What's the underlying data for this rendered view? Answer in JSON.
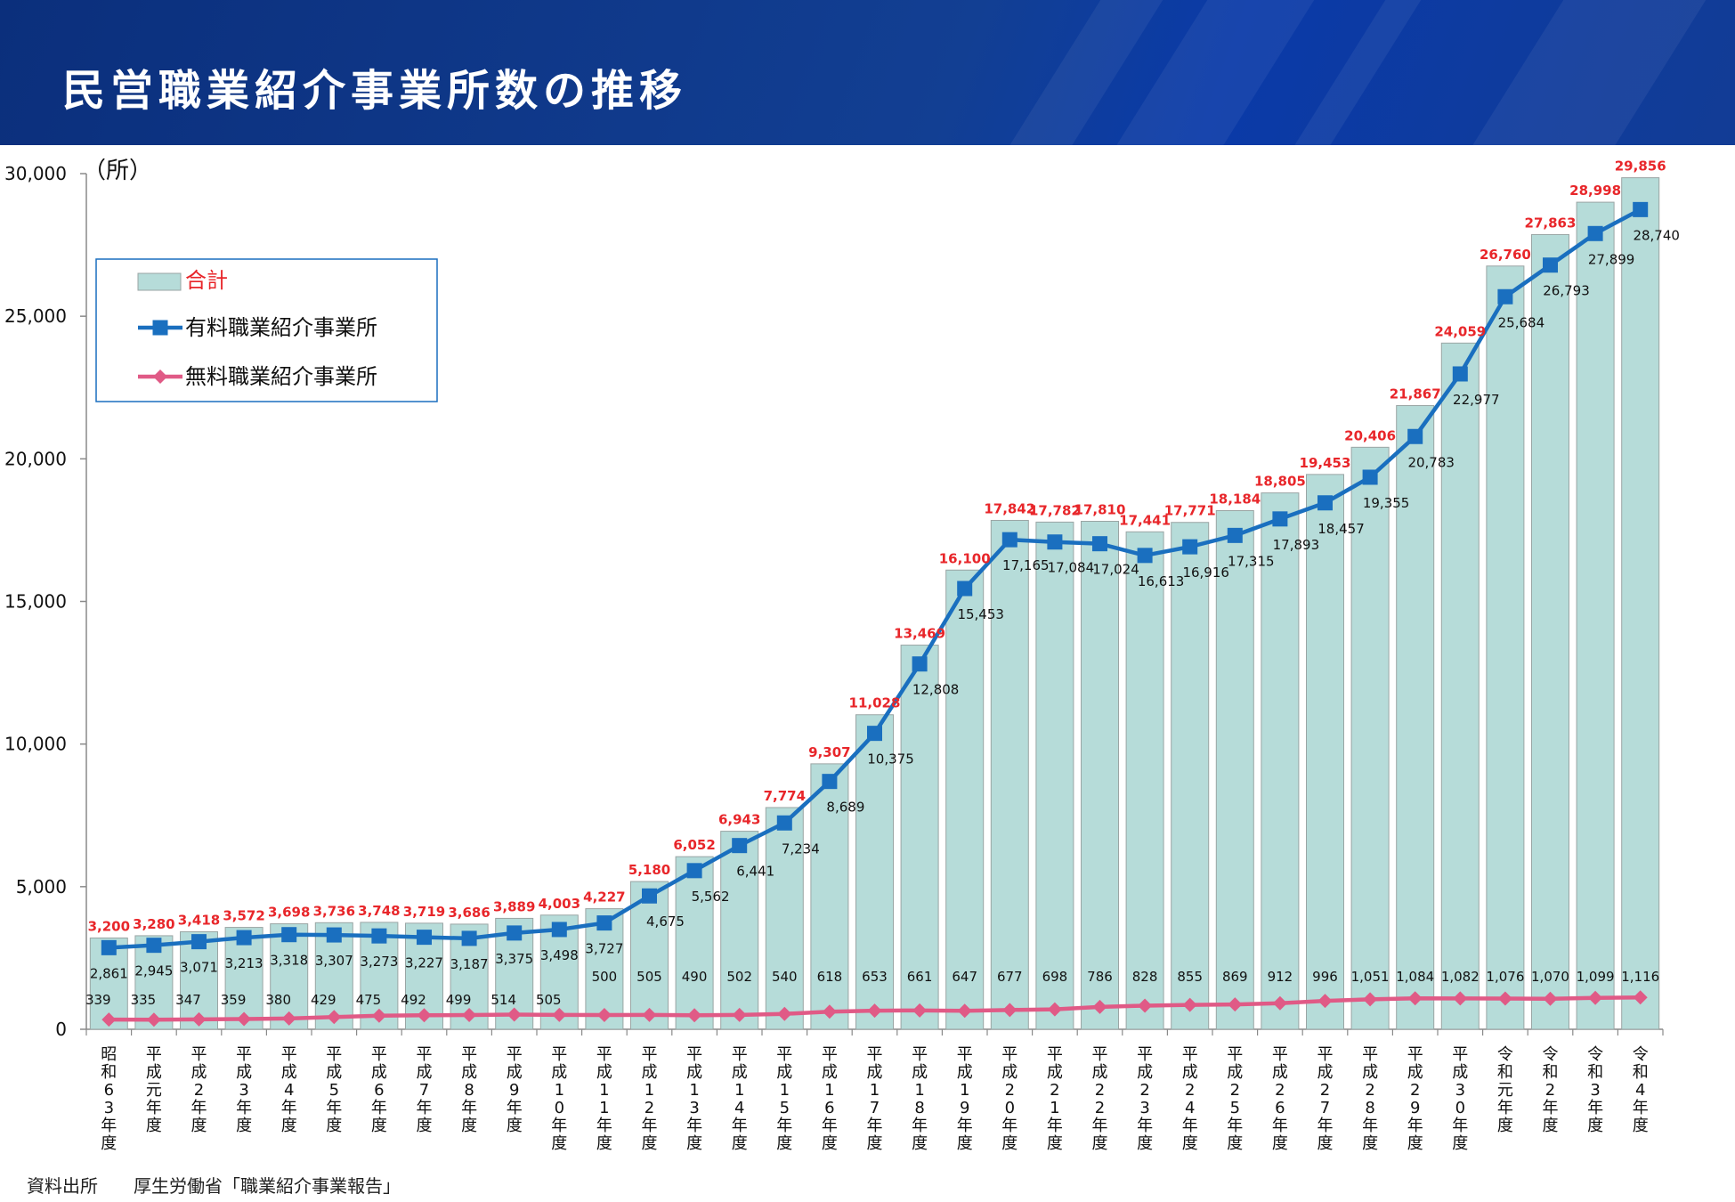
{
  "header": {
    "title": "民営職業紹介事業所数の推移"
  },
  "source": {
    "label": "資料出所",
    "text": "厚生労働省「職業紹介事業報告」"
  },
  "chart_data": {
    "type": "bar",
    "unit_label": "（所）",
    "ylim": [
      0,
      30000
    ],
    "yticks": [
      0,
      5000,
      10000,
      15000,
      20000,
      25000,
      30000
    ],
    "ytick_labels": [
      "0",
      "5,000",
      "10,000",
      "15,000",
      "20,000",
      "25,000",
      "30,000"
    ],
    "categories": [
      "昭和63年度",
      "平成元年度",
      "平成2年度",
      "平成3年度",
      "平成4年度",
      "平成5年度",
      "平成6年度",
      "平成7年度",
      "平成8年度",
      "平成9年度",
      "平成10年度",
      "平成11年度",
      "平成12年度",
      "平成13年度",
      "平成14年度",
      "平成15年度",
      "平成16年度",
      "平成17年度",
      "平成18年度",
      "平成19年度",
      "平成20年度",
      "平成21年度",
      "平成22年度",
      "平成23年度",
      "平成24年度",
      "平成25年度",
      "平成26年度",
      "平成27年度",
      "平成28年度",
      "平成29年度",
      "平成30年度",
      "令和元年度",
      "令和2年度",
      "令和3年度",
      "令和4年度"
    ],
    "series": [
      {
        "name": "合計",
        "kind": "bar",
        "color": "#b6dcd9",
        "label_color": "#e8262a",
        "values": [
          3200,
          3280,
          3418,
          3572,
          3698,
          3736,
          3748,
          3719,
          3686,
          3889,
          4003,
          4227,
          5180,
          6052,
          6943,
          7774,
          9307,
          11028,
          13469,
          16100,
          17842,
          17782,
          17810,
          17441,
          17771,
          18184,
          18805,
          19453,
          20406,
          21867,
          24059,
          26760,
          27863,
          28998,
          29856
        ],
        "labels": [
          "3,200",
          "3,280",
          "3,418",
          "3,572",
          "3,698",
          "3,736",
          "3,748",
          "3,719",
          "3,686",
          "3,889",
          "4,003",
          "4,227",
          "5,180",
          "6,052",
          "6,943",
          "7,774",
          "9,307",
          "11,028",
          "13,469",
          "16,100",
          "17,842",
          "17,782",
          "17,810",
          "17,441",
          "17,771",
          "18,184",
          "18,805",
          "19,453",
          "20,406",
          "21,867",
          "24,059",
          "26,760",
          "27,863",
          "28,998",
          "29,856"
        ]
      },
      {
        "name": "有料職業紹介事業所",
        "kind": "line",
        "marker": "square",
        "color": "#1a6fbf",
        "values": [
          2861,
          2945,
          3071,
          3213,
          3318,
          3307,
          3273,
          3227,
          3187,
          3375,
          3498,
          3727,
          4675,
          5562,
          6441,
          7234,
          8689,
          10375,
          12808,
          15453,
          17165,
          17084,
          17024,
          16613,
          16916,
          17315,
          17893,
          18457,
          19355,
          20783,
          22977,
          25684,
          26793,
          27899,
          28740
        ],
        "labels": [
          "2,861",
          "2,945",
          "3,071",
          "3,213",
          "3,318",
          "3,307",
          "3,273",
          "3,227",
          "3,187",
          "3,375",
          "3,498",
          "3,727",
          "4,675",
          "5,562",
          "6,441",
          "7,234",
          "8,689",
          "10,375",
          "12,808",
          "15,453",
          "17,165",
          "17,084",
          "17,024",
          "16,613",
          "16,916",
          "17,315",
          "17,893",
          "18,457",
          "19,355",
          "20,783",
          "22,977",
          "25,684",
          "26,793",
          "27,899",
          "28,740"
        ]
      },
      {
        "name": "無料職業紹介事業所",
        "kind": "line",
        "marker": "diamond",
        "color": "#e05a86",
        "values": [
          339,
          335,
          347,
          359,
          380,
          429,
          475,
          492,
          499,
          514,
          505,
          500,
          505,
          490,
          502,
          540,
          618,
          653,
          661,
          647,
          677,
          698,
          786,
          828,
          855,
          869,
          912,
          996,
          1051,
          1084,
          1082,
          1076,
          1070,
          1099,
          1116
        ],
        "labels": [
          "339",
          "335",
          "347",
          "359",
          "380",
          "429",
          "475",
          "492",
          "499",
          "514",
          "505",
          "500",
          "505",
          "490",
          "502",
          "540",
          "618",
          "653",
          "661",
          "647",
          "677",
          "698",
          "786",
          "828",
          "855",
          "869",
          "912",
          "996",
          "1,051",
          "1,084",
          "1,082",
          "1,076",
          "1,070",
          "1,099",
          "1,116"
        ]
      }
    ],
    "legend": {
      "position": "top-left",
      "entries": [
        "合計",
        "有料職業紹介事業所",
        "無料職業紹介事業所"
      ],
      "border_color": "#1a6fbf"
    }
  }
}
